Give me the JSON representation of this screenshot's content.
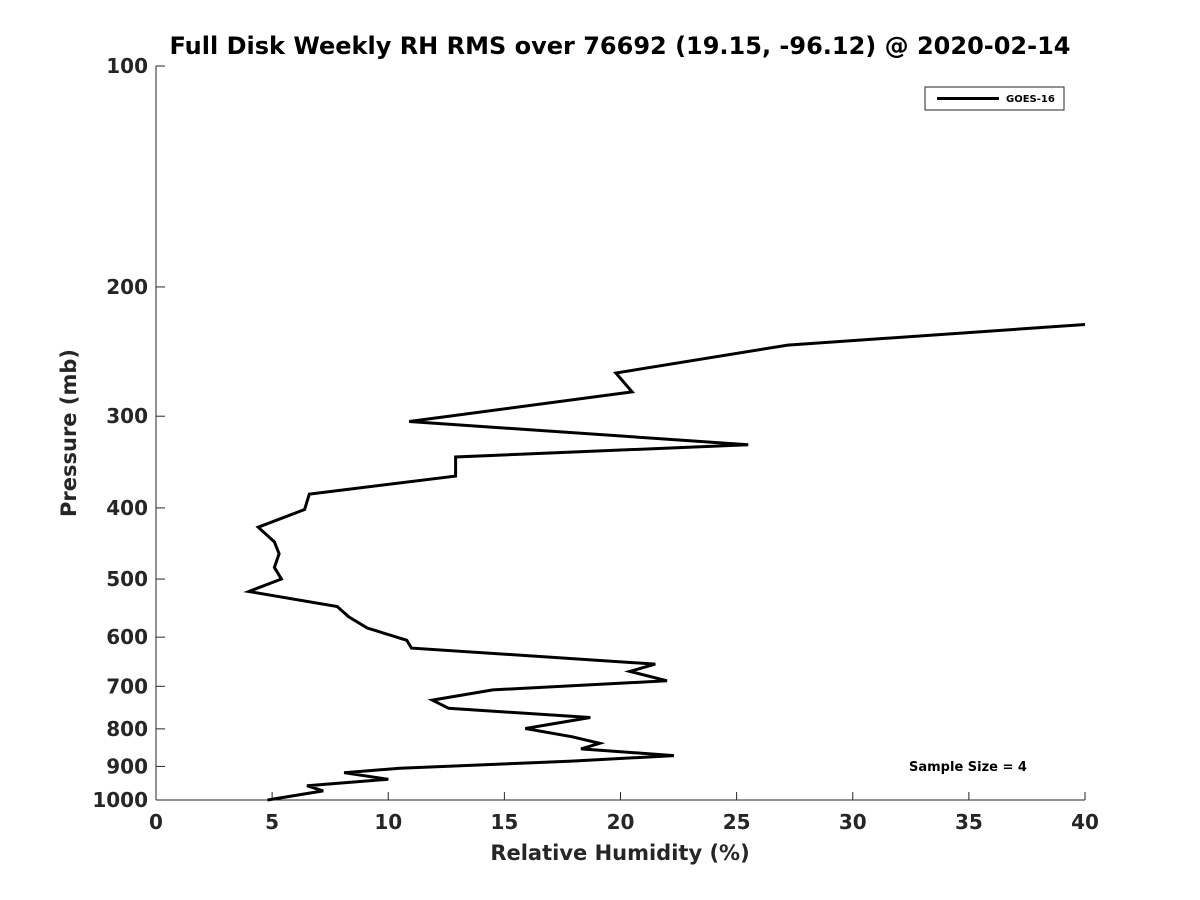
{
  "chart_data": {
    "type": "line",
    "title": "Full Disk Weekly RH RMS over 76692 (19.15, -96.12) @ 2020-02-14",
    "xlabel": "Relative Humidity (%)",
    "ylabel": "Pressure (mb)",
    "xlim": [
      0,
      40
    ],
    "ylim": [
      100,
      1000
    ],
    "y_scale": "log",
    "y_reversed": true,
    "grid": false,
    "legend_position": "top-right",
    "x_ticks": [
      "0",
      "5",
      "10",
      "15",
      "20",
      "25",
      "30",
      "35",
      "40"
    ],
    "y_ticks": [
      "100",
      "200",
      "300",
      "400",
      "500",
      "600",
      "700",
      "800",
      "900",
      "1000"
    ],
    "annotation": "Sample Size = 4",
    "series": [
      {
        "name": "GOES-16",
        "color": "#000000",
        "x": [
          40.0,
          27.2,
          19.8,
          20.5,
          10.9,
          25.5,
          12.9,
          12.9,
          6.6,
          6.4,
          4.4,
          5.1,
          5.3,
          5.1,
          5.4,
          4.0,
          7.8,
          8.3,
          9.1,
          10.8,
          11.0,
          21.5,
          20.4,
          22.0,
          14.5,
          11.9,
          12.6,
          18.7,
          15.9,
          17.9,
          19.1,
          18.3,
          22.3,
          17.9,
          10.5,
          8.1,
          10.0,
          6.5,
          7.2,
          4.8
        ],
        "y": [
          225,
          240,
          262,
          278,
          305,
          328,
          341,
          362,
          383,
          402,
          425,
          445,
          462,
          482,
          500,
          520,
          545,
          563,
          583,
          606,
          621,
          653,
          668,
          688,
          708,
          731,
          750,
          772,
          799,
          820,
          837,
          852,
          870,
          885,
          905,
          918,
          937,
          956,
          972,
          1000
        ]
      }
    ]
  }
}
